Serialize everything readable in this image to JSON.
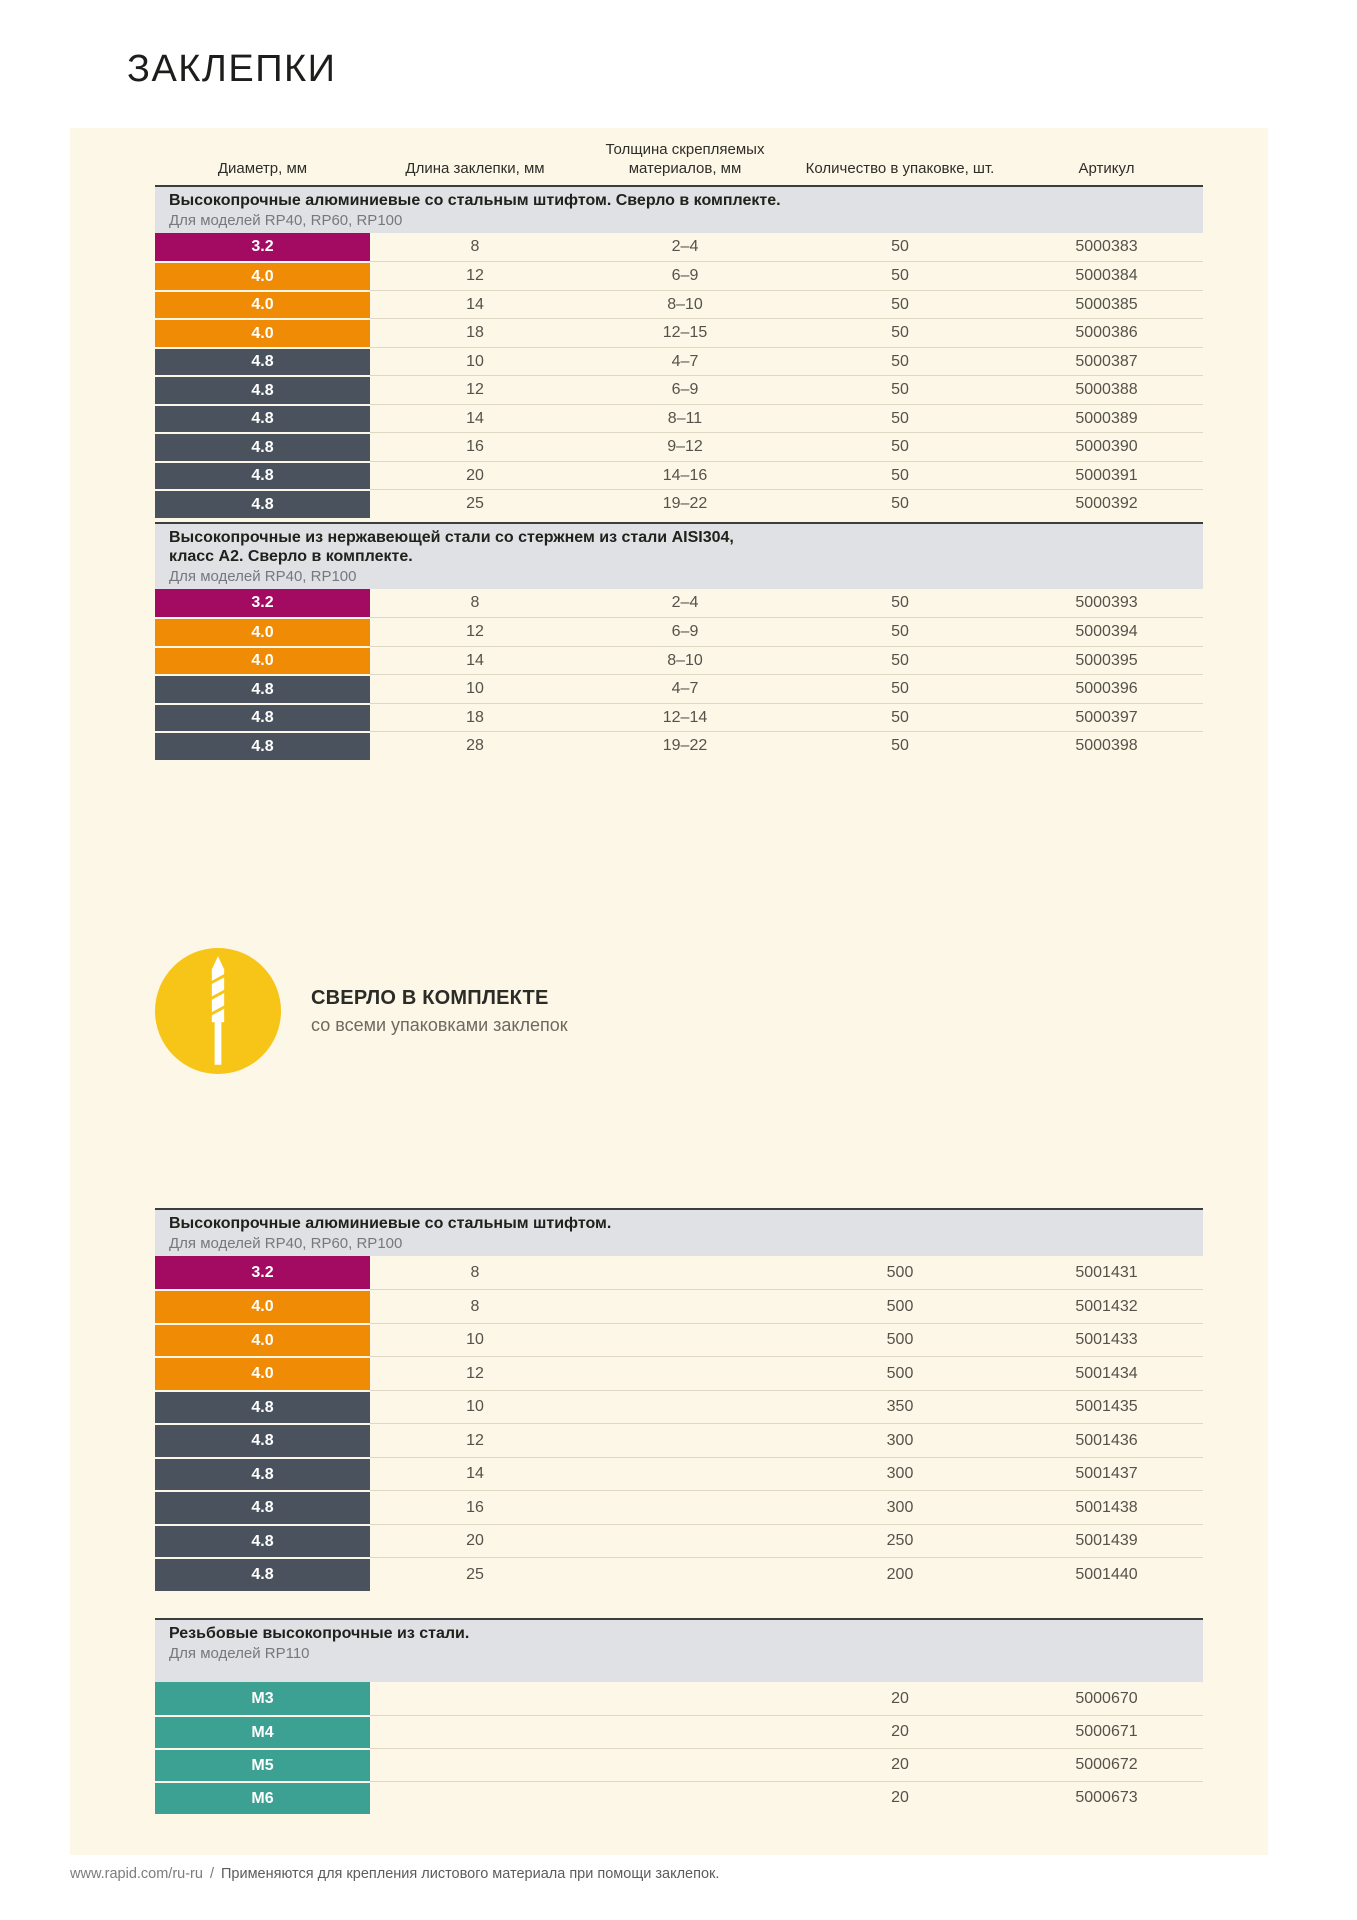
{
  "page": {
    "title": "ЗАКЛЕПКИ"
  },
  "columns": [
    "Диаметр, мм",
    "Длина заклепки, мм",
    "Толщина скрепляемых материалов, мм",
    "Количество в упаковке, шт.",
    "Артикул"
  ],
  "colors": {
    "magenta": "#a30a61",
    "orange": "#f08b05",
    "slate": "#4a525e",
    "teal": "#3ca192",
    "panel_cream": "#fdf7e7",
    "band_gray": "#dfe1e5",
    "accent_yellow": "#f7c517"
  },
  "callout": {
    "title": "СВЕРЛО В КОМПЛЕКТЕ",
    "subtitle": "со всеми упаковками заклепок",
    "icon": "drill-bit-icon"
  },
  "footer": {
    "url": "www.rapid.com/ru-ru",
    "separator": "/",
    "note": "Применяются для крепления листового материала при помощи заклепок."
  },
  "sections": [
    {
      "title": "Высокопрочные алюминиевые со стальным штифтом. Сверло в комплекте.",
      "subtitle": "Для моделей RP40, RP60, RP100",
      "rows": [
        {
          "diameter": "3.2",
          "color": "magenta",
          "length": "8",
          "thickness": "2–4",
          "qty": "50",
          "sku": "5000383"
        },
        {
          "diameter": "4.0",
          "color": "orange",
          "length": "12",
          "thickness": "6–9",
          "qty": "50",
          "sku": "5000384"
        },
        {
          "diameter": "4.0",
          "color": "orange",
          "length": "14",
          "thickness": "8–10",
          "qty": "50",
          "sku": "5000385"
        },
        {
          "diameter": "4.0",
          "color": "orange",
          "length": "18",
          "thickness": "12–15",
          "qty": "50",
          "sku": "5000386"
        },
        {
          "diameter": "4.8",
          "color": "slate",
          "length": "10",
          "thickness": "4–7",
          "qty": "50",
          "sku": "5000387"
        },
        {
          "diameter": "4.8",
          "color": "slate",
          "length": "12",
          "thickness": "6–9",
          "qty": "50",
          "sku": "5000388"
        },
        {
          "diameter": "4.8",
          "color": "slate",
          "length": "14",
          "thickness": "8–11",
          "qty": "50",
          "sku": "5000389"
        },
        {
          "diameter": "4.8",
          "color": "slate",
          "length": "16",
          "thickness": "9–12",
          "qty": "50",
          "sku": "5000390"
        },
        {
          "diameter": "4.8",
          "color": "slate",
          "length": "20",
          "thickness": "14–16",
          "qty": "50",
          "sku": "5000391"
        },
        {
          "diameter": "4.8",
          "color": "slate",
          "length": "25",
          "thickness": "19–22",
          "qty": "50",
          "sku": "5000392"
        }
      ]
    },
    {
      "title": "Высокопрочные из нержавеющей стали со стержнем из стали AISI304,\nкласс А2. Сверло в комплекте.",
      "subtitle": "Для моделей RP40, RP100",
      "rows": [
        {
          "diameter": "3.2",
          "color": "magenta",
          "length": "8",
          "thickness": "2–4",
          "qty": "50",
          "sku": "5000393"
        },
        {
          "diameter": "4.0",
          "color": "orange",
          "length": "12",
          "thickness": "6–9",
          "qty": "50",
          "sku": "5000394"
        },
        {
          "diameter": "4.0",
          "color": "orange",
          "length": "14",
          "thickness": "8–10",
          "qty": "50",
          "sku": "5000395"
        },
        {
          "diameter": "4.8",
          "color": "slate",
          "length": "10",
          "thickness": "4–7",
          "qty": "50",
          "sku": "5000396"
        },
        {
          "diameter": "4.8",
          "color": "slate",
          "length": "18",
          "thickness": "12–14",
          "qty": "50",
          "sku": "5000397"
        },
        {
          "diameter": "4.8",
          "color": "slate",
          "length": "28",
          "thickness": "19–22",
          "qty": "50",
          "sku": "5000398"
        }
      ]
    },
    {
      "title": "Высокопрочные алюминиевые со стальным штифтом.",
      "subtitle": "Для моделей RP40, RP60, RP100",
      "rows": [
        {
          "diameter": "3.2",
          "color": "magenta",
          "length": "8",
          "thickness": "",
          "qty": "500",
          "sku": "5001431"
        },
        {
          "diameter": "4.0",
          "color": "orange",
          "length": "8",
          "thickness": "",
          "qty": "500",
          "sku": "5001432"
        },
        {
          "diameter": "4.0",
          "color": "orange",
          "length": "10",
          "thickness": "",
          "qty": "500",
          "sku": "5001433"
        },
        {
          "diameter": "4.0",
          "color": "orange",
          "length": "12",
          "thickness": "",
          "qty": "500",
          "sku": "5001434"
        },
        {
          "diameter": "4.8",
          "color": "slate",
          "length": "10",
          "thickness": "",
          "qty": "350",
          "sku": "5001435"
        },
        {
          "diameter": "4.8",
          "color": "slate",
          "length": "12",
          "thickness": "",
          "qty": "300",
          "sku": "5001436"
        },
        {
          "diameter": "4.8",
          "color": "slate",
          "length": "14",
          "thickness": "",
          "qty": "300",
          "sku": "5001437"
        },
        {
          "diameter": "4.8",
          "color": "slate",
          "length": "16",
          "thickness": "",
          "qty": "300",
          "sku": "5001438"
        },
        {
          "diameter": "4.8",
          "color": "slate",
          "length": "20",
          "thickness": "",
          "qty": "250",
          "sku": "5001439"
        },
        {
          "diameter": "4.8",
          "color": "slate",
          "length": "25",
          "thickness": "",
          "qty": "200",
          "sku": "5001440"
        }
      ]
    },
    {
      "title": "Резьбовые высокопрочные из стали.",
      "subtitle": "Для моделей RP110",
      "rows": [
        {
          "diameter": "M3",
          "color": "teal",
          "length": "",
          "thickness": "",
          "qty": "20",
          "sku": "5000670"
        },
        {
          "diameter": "M4",
          "color": "teal",
          "length": "",
          "thickness": "",
          "qty": "20",
          "sku": "5000671"
        },
        {
          "diameter": "M5",
          "color": "teal",
          "length": "",
          "thickness": "",
          "qty": "20",
          "sku": "5000672"
        },
        {
          "diameter": "M6",
          "color": "teal",
          "length": "",
          "thickness": "",
          "qty": "20",
          "sku": "5000673"
        }
      ]
    }
  ]
}
